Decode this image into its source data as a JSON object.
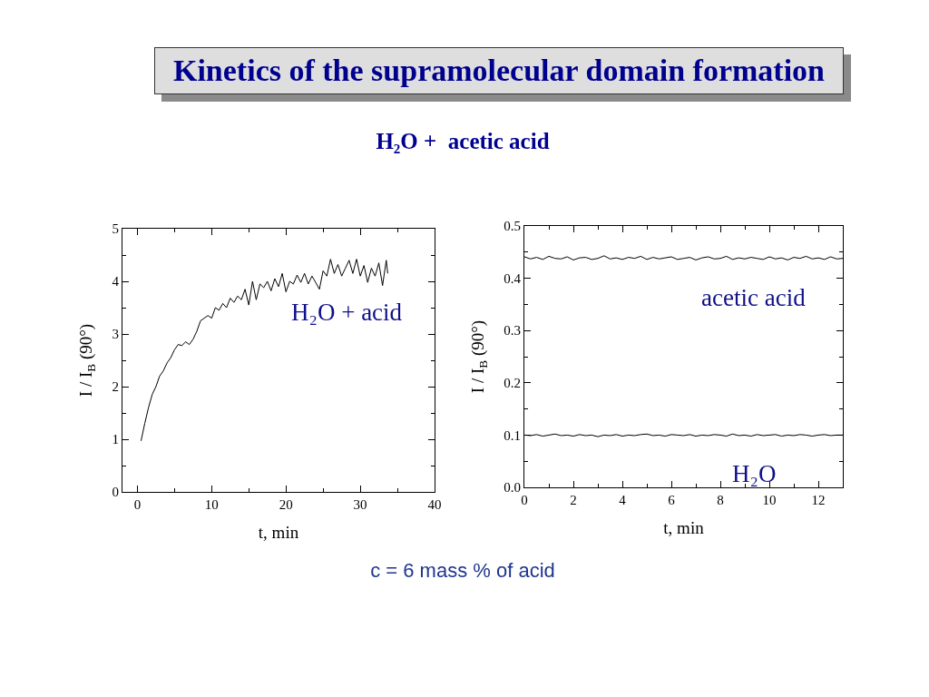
{
  "chart_data": [
    {
      "type": "line",
      "title": "Kinetics of the supramolecular domain formation",
      "subtitle": "H₂O +  acetic acid",
      "xlabel": "t, min",
      "ylabel": "I / I$_{B}$ (90°)",
      "annotations": [
        "c = 6 mass % of acid"
      ],
      "x": [
        0.5,
        1,
        1.5,
        2,
        2.5,
        3,
        3.5,
        4,
        4.5,
        5,
        5.5,
        6,
        6.5,
        7,
        7.5,
        8,
        8.5,
        9,
        9.5,
        10,
        10.5,
        11,
        11.5,
        12,
        12.5,
        13,
        13.5,
        14,
        14.5,
        15,
        15.5,
        16,
        16.5,
        17,
        17.5,
        18,
        18.5,
        19,
        19.5,
        20,
        20.5,
        21,
        21.5,
        22,
        22.5,
        23,
        23.5,
        24,
        24.5,
        25,
        25.5,
        26,
        26.5,
        27,
        27.5,
        28,
        28.5,
        29,
        29.5,
        30,
        30.5,
        31,
        31.5,
        32,
        32.5,
        33,
        33.5,
        33.7
      ],
      "series": [
        {
          "name": "H₂O + acid",
          "color": "#000000",
          "values": [
            0.97,
            1.3,
            1.6,
            1.85,
            2.0,
            2.2,
            2.3,
            2.45,
            2.55,
            2.7,
            2.8,
            2.78,
            2.85,
            2.8,
            2.9,
            3.05,
            3.25,
            3.3,
            3.35,
            3.3,
            3.5,
            3.45,
            3.58,
            3.5,
            3.68,
            3.6,
            3.72,
            3.65,
            3.85,
            3.55,
            4.0,
            3.65,
            3.95,
            3.88,
            4.0,
            3.82,
            4.05,
            3.9,
            4.15,
            3.8,
            4.0,
            3.95,
            4.12,
            3.98,
            4.15,
            3.95,
            4.1,
            3.98,
            3.85,
            4.2,
            4.1,
            4.42,
            4.15,
            4.32,
            4.1,
            4.25,
            4.4,
            4.15,
            4.42,
            4.1,
            4.3,
            3.98,
            4.25,
            4.1,
            4.35,
            3.92,
            4.4,
            4.15
          ]
        }
      ],
      "xlim": [
        -2,
        40
      ],
      "xticks": [
        0,
        {
          "value": 5,
          "label": null
        },
        10,
        {
          "value": 15,
          "label": null
        },
        20,
        {
          "value": 25,
          "label": null
        },
        30,
        {
          "value": 35,
          "label": null
        },
        40
      ],
      "ylim": [
        0,
        5
      ],
      "yticks": [
        0,
        {
          "value": 0.5,
          "label": null
        },
        1,
        {
          "value": 1.5,
          "label": null
        },
        2,
        {
          "value": 2.5,
          "label": null
        },
        3,
        {
          "value": 3.5,
          "label": null
        },
        4,
        {
          "value": 4.5,
          "label": null
        },
        5
      ]
    },
    {
      "type": "line",
      "xlabel": "t, min",
      "ylabel": "I / I$_{B}$ (90°)",
      "x": [
        0,
        0.25,
        0.5,
        0.75,
        1,
        1.25,
        1.5,
        1.75,
        2,
        2.25,
        2.5,
        2.75,
        3,
        3.25,
        3.5,
        3.75,
        4,
        4.25,
        4.5,
        4.75,
        5,
        5.25,
        5.5,
        5.75,
        6,
        6.25,
        6.5,
        6.75,
        7,
        7.25,
        7.5,
        7.75,
        8,
        8.25,
        8.5,
        8.75,
        9,
        9.25,
        9.5,
        9.75,
        10,
        10.25,
        10.5,
        10.75,
        11,
        11.25,
        11.5,
        11.75,
        12,
        12.25,
        12.5,
        12.75,
        13
      ],
      "series": [
        {
          "name": "acetic acid",
          "color": "#000000",
          "values": [
            0.441,
            0.437,
            0.44,
            0.436,
            0.442,
            0.438,
            0.437,
            0.441,
            0.435,
            0.439,
            0.44,
            0.436,
            0.438,
            0.443,
            0.437,
            0.439,
            0.436,
            0.44,
            0.438,
            0.442,
            0.436,
            0.44,
            0.437,
            0.439,
            0.441,
            0.436,
            0.438,
            0.44,
            0.435,
            0.439,
            0.441,
            0.437,
            0.438,
            0.442,
            0.436,
            0.439,
            0.437,
            0.44,
            0.438,
            0.436,
            0.441,
            0.437,
            0.439,
            0.435,
            0.44,
            0.438,
            0.442,
            0.437,
            0.439,
            0.436,
            0.441,
            0.437,
            0.438
          ]
        },
        {
          "name": "H₂O",
          "color": "#000000",
          "values": [
            0.1,
            0.099,
            0.101,
            0.098,
            0.1,
            0.102,
            0.099,
            0.1,
            0.098,
            0.101,
            0.099,
            0.1,
            0.097,
            0.1,
            0.099,
            0.101,
            0.098,
            0.1,
            0.099,
            0.101,
            0.102,
            0.099,
            0.1,
            0.098,
            0.101,
            0.1,
            0.099,
            0.101,
            0.098,
            0.1,
            0.099,
            0.101,
            0.1,
            0.098,
            0.102,
            0.099,
            0.1,
            0.098,
            0.101,
            0.099,
            0.1,
            0.101,
            0.098,
            0.1,
            0.099,
            0.101,
            0.1,
            0.098,
            0.1,
            0.101,
            0.099,
            0.1,
            0.1
          ]
        }
      ],
      "xlim": [
        0,
        13
      ],
      "xticks": [
        0,
        {
          "value": 1,
          "label": null
        },
        2,
        {
          "value": 3,
          "label": null
        },
        4,
        {
          "value": 5,
          "label": null
        },
        6,
        {
          "value": 7,
          "label": null
        },
        8,
        {
          "value": 9,
          "label": null
        },
        10,
        {
          "value": 11,
          "label": null
        },
        12
      ],
      "ylim": [
        0,
        0.5
      ],
      "yticks": [
        {
          "value": 0,
          "label": "0.0"
        },
        {
          "value": 0.05,
          "label": null
        },
        0.1,
        {
          "value": 0.15,
          "label": null
        },
        0.2,
        {
          "value": 0.25,
          "label": null
        },
        0.3,
        {
          "value": 0.35,
          "label": null
        },
        0.4,
        {
          "value": 0.45,
          "label": null
        },
        0.5
      ]
    }
  ]
}
